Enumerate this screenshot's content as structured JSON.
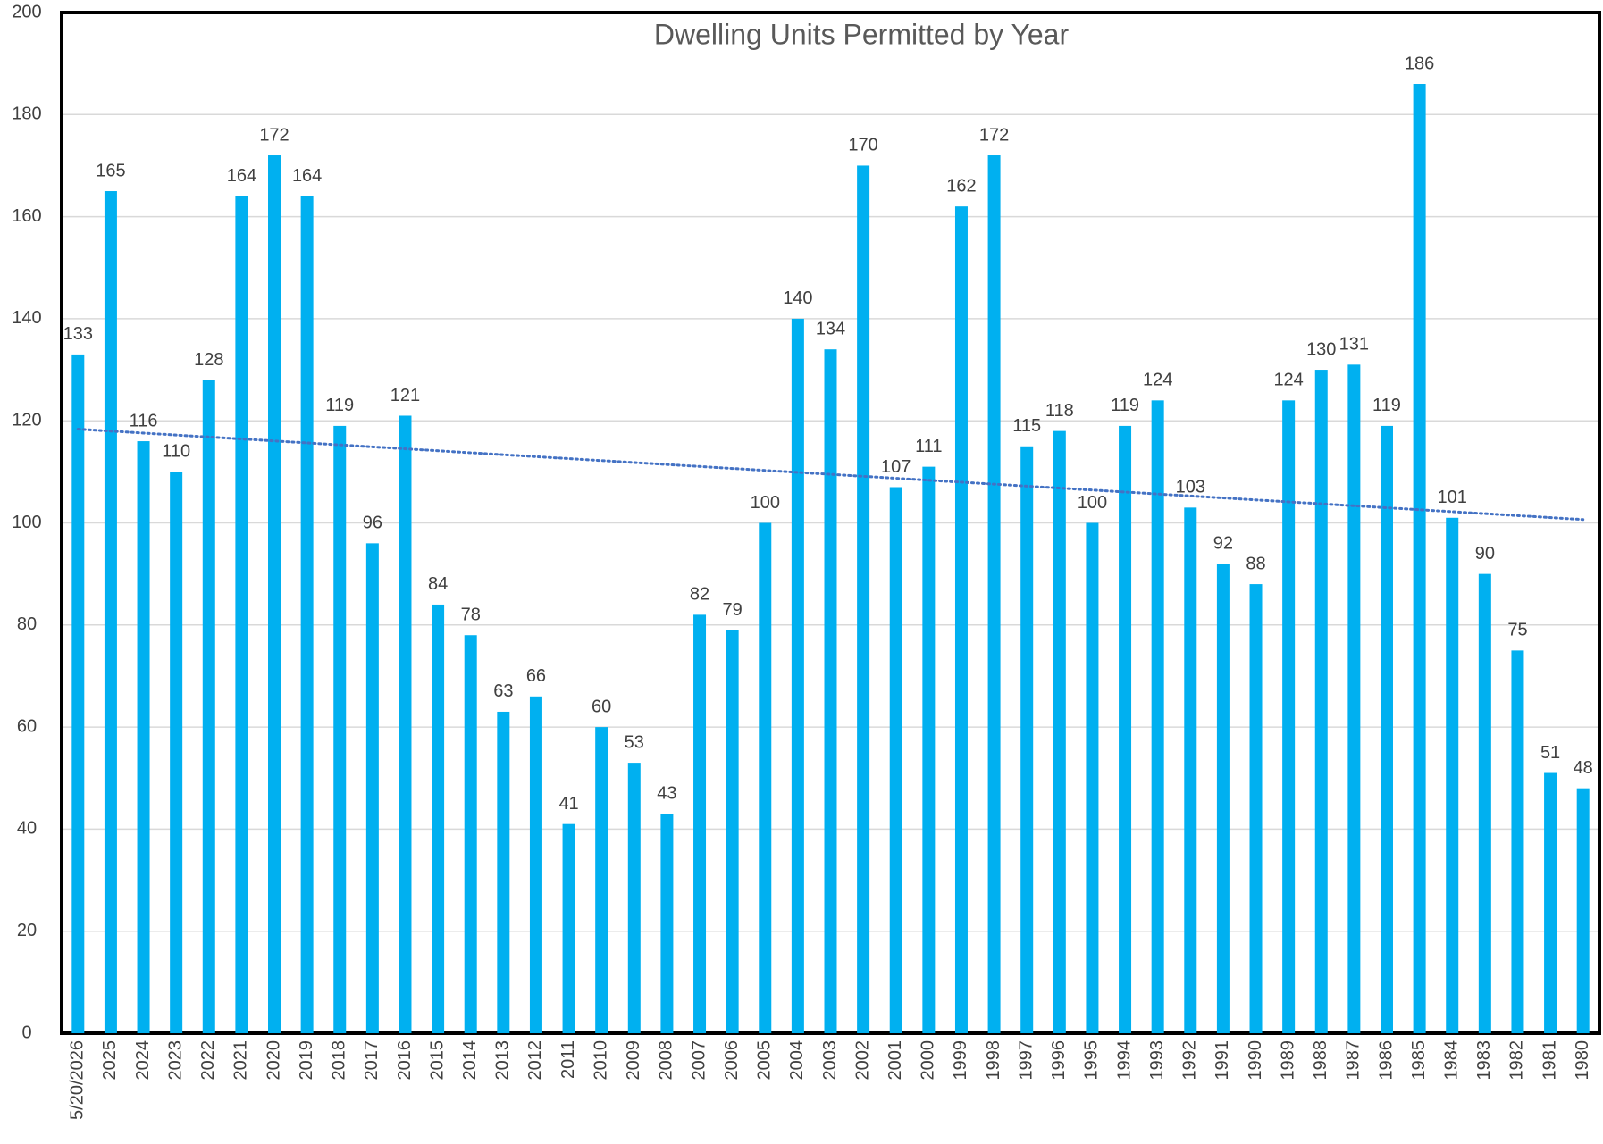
{
  "chart_data": {
    "type": "bar",
    "title": "Dwelling Units Permitted by Year",
    "categories": [
      "5/20/2026",
      "2025",
      "2024",
      "2023",
      "2022",
      "2021",
      "2020",
      "2019",
      "2018",
      "2017",
      "2016",
      "2015",
      "2014",
      "2013",
      "2012",
      "2011",
      "2010",
      "2009",
      "2008",
      "2007",
      "2006",
      "2005",
      "2004",
      "2003",
      "2002",
      "2001",
      "2000",
      "1999",
      "1998",
      "1997",
      "1996",
      "1995",
      "1994",
      "1993",
      "1992",
      "1991",
      "1990",
      "1989",
      "1988",
      "1987",
      "1986",
      "1985",
      "1984",
      "1983",
      "1982",
      "1981",
      "1980"
    ],
    "values": [
      133,
      165,
      116,
      110,
      128,
      164,
      172,
      164,
      119,
      96,
      121,
      84,
      78,
      63,
      66,
      41,
      60,
      53,
      43,
      82,
      79,
      100,
      140,
      134,
      170,
      107,
      111,
      162,
      172,
      115,
      118,
      100,
      119,
      124,
      103,
      92,
      88,
      124,
      130,
      131,
      119,
      186,
      101,
      90,
      75,
      51,
      48
    ],
    "color": "#00b0f0",
    "trendline": true,
    "trendline_color": "#4472c4",
    "ylim": [
      0,
      200
    ],
    "yticks": [
      0,
      20,
      40,
      60,
      80,
      100,
      120,
      140,
      160,
      180,
      200
    ],
    "grid": true
  }
}
